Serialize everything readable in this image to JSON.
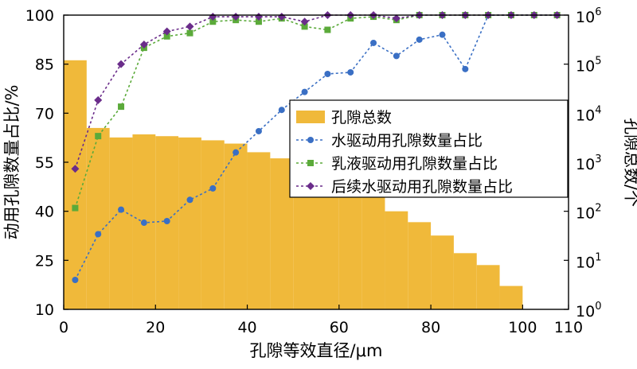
{
  "chart_data": {
    "type": "bar+line",
    "xlabel": "孔隙等效直径/μm",
    "ylabel_left": "动用孔隙数量占比/%",
    "ylabel_right": "孔隙总数/个",
    "xlim": [
      0,
      110
    ],
    "ylim_left": [
      10,
      100
    ],
    "ylim_right_log10": [
      0,
      6
    ],
    "x_ticks": [
      "0",
      "20",
      "40",
      "60",
      "80",
      "100",
      "110"
    ],
    "y_left_ticks": [
      "10",
      "25",
      "40",
      "55",
      "70",
      "85",
      "100"
    ],
    "y_right_ticks": [
      {
        "base": "10",
        "exp": "0"
      },
      {
        "base": "10",
        "exp": "1"
      },
      {
        "base": "10",
        "exp": "2"
      },
      {
        "base": "10",
        "exp": "3"
      },
      {
        "base": "10",
        "exp": "4"
      },
      {
        "base": "10",
        "exp": "5"
      },
      {
        "base": "10",
        "exp": "6"
      }
    ],
    "bars": {
      "name": "孔隙总数",
      "color": "#F0B93A",
      "bin_width": 5,
      "bin_starts": [
        0,
        5,
        10,
        15,
        20,
        25,
        30,
        35,
        40,
        45,
        50,
        55,
        60,
        65,
        70,
        75,
        80,
        85,
        90,
        95,
        100,
        105
      ],
      "values": [
        120000,
        5000,
        3200,
        3700,
        3400,
        3200,
        2800,
        2400,
        1600,
        1200,
        900,
        650,
        450,
        200,
        100,
        60,
        32,
        14,
        8,
        3,
        0.3,
        0.3
      ]
    },
    "series": [
      {
        "name": "水驱动用孔隙数量占比",
        "color": "#3A6FC4",
        "marker": "circle",
        "x": [
          2.5,
          7.5,
          12.5,
          17.5,
          22.5,
          27.5,
          32.5,
          37.5,
          42.5,
          47.5,
          52.5,
          57.5,
          62.5,
          67.5,
          72.5,
          77.5,
          82.5,
          87.5,
          92.5,
          97.5,
          102.5,
          107.5
        ],
        "values": [
          19,
          33,
          40.5,
          36.5,
          37,
          43.5,
          47,
          58,
          64.5,
          71,
          76.5,
          82,
          82.5,
          91.5,
          87.5,
          92.5,
          94,
          83.5,
          100,
          100,
          100,
          100
        ]
      },
      {
        "name": "乳液驱动用孔隙数量占比",
        "color": "#5BAA3A",
        "marker": "square",
        "x": [
          2.5,
          7.5,
          12.5,
          17.5,
          22.5,
          27.5,
          32.5,
          37.5,
          42.5,
          47.5,
          52.5,
          57.5,
          62.5,
          67.5,
          72.5,
          77.5,
          82.5,
          87.5,
          92.5,
          97.5,
          102.5,
          107.5
        ],
        "values": [
          41,
          63,
          72,
          90,
          93.5,
          94.5,
          98,
          98.5,
          98,
          99,
          96.5,
          95.5,
          99,
          99.5,
          98.5,
          100,
          100,
          100,
          100,
          100,
          100,
          100
        ]
      },
      {
        "name": "后续水驱动用孔隙数量占比",
        "color": "#6A2C8A",
        "marker": "diamond",
        "x": [
          2.5,
          7.5,
          12.5,
          17.5,
          22.5,
          27.5,
          32.5,
          37.5,
          42.5,
          47.5,
          52.5,
          57.5,
          62.5,
          67.5,
          72.5,
          77.5,
          82.5,
          87.5,
          92.5,
          97.5,
          102.5,
          107.5
        ],
        "values": [
          53,
          74,
          85,
          91,
          95,
          96.5,
          99.5,
          99.5,
          99.5,
          99.5,
          98,
          100,
          100,
          100,
          99,
          100,
          100,
          100,
          100,
          100,
          100,
          100
        ]
      }
    ],
    "legend": {
      "position": "center-right",
      "items": [
        {
          "label": "孔隙总数",
          "kind": "bar"
        },
        {
          "label": "水驱动用孔隙数量占比",
          "kind": "circle"
        },
        {
          "label": "乳液驱动用孔隙数量占比",
          "kind": "square"
        },
        {
          "label": "后续水驱动用孔隙数量占比",
          "kind": "diamond"
        }
      ]
    }
  }
}
